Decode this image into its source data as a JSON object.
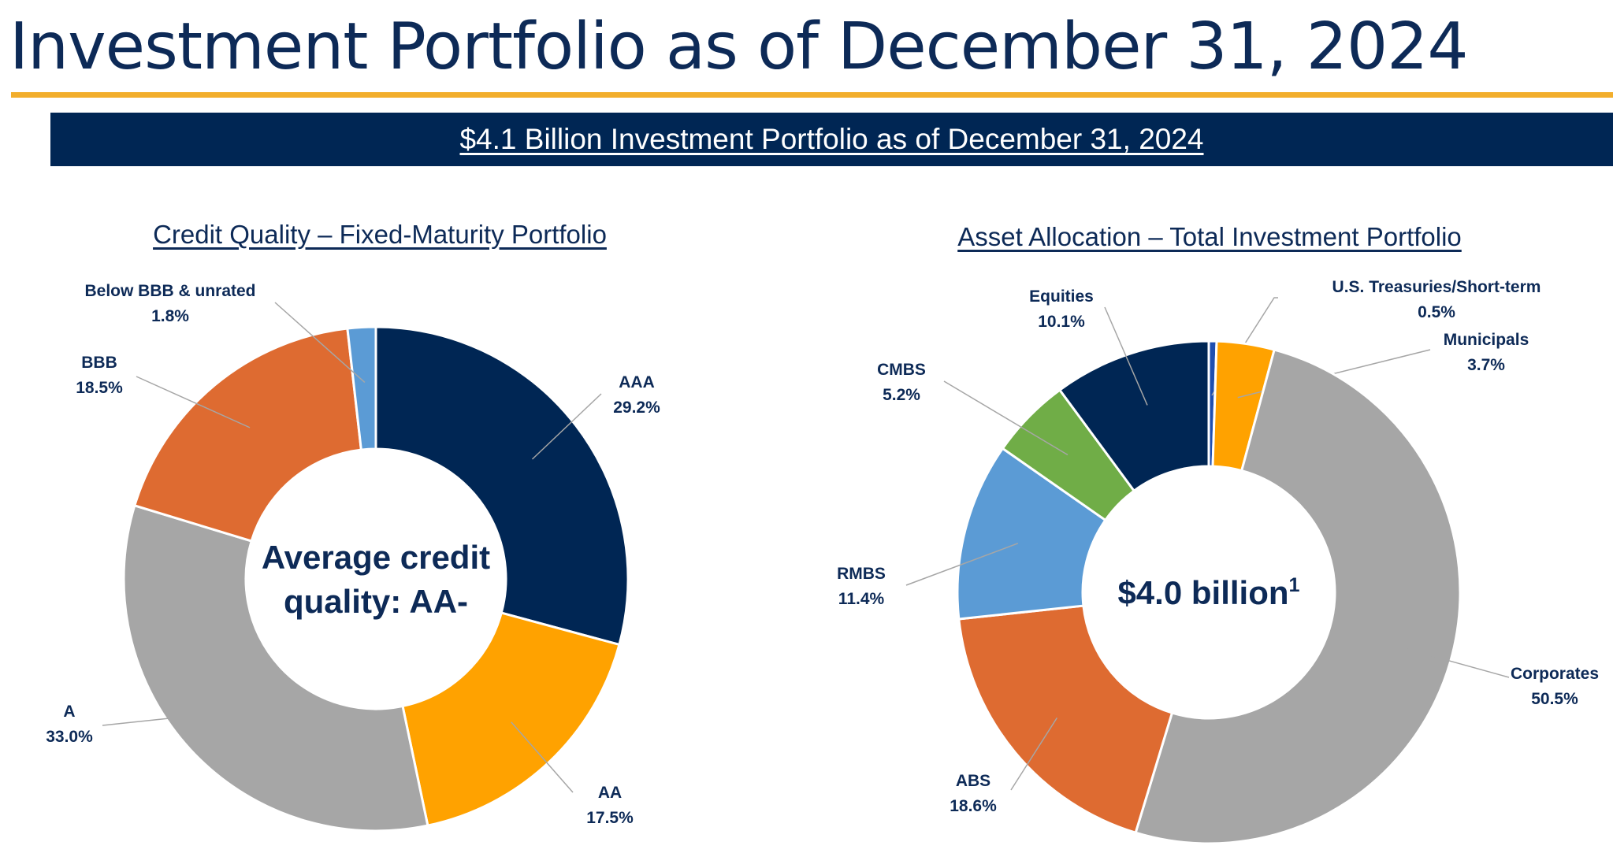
{
  "page": {
    "title": "Investment Portfolio as of December 31, 2024",
    "banner": "$4.1 Billion Investment Portfolio as of December 31, 2024"
  },
  "colors": {
    "navy": "#002654",
    "gold_rule": "#f2ae2c",
    "dark_navy": "#002654",
    "orange_gold": "#ffa200",
    "gray": "#a6a6a6",
    "orange": "#de6b31",
    "light_blue": "#5b9bd5",
    "green": "#70ad47",
    "blue": "#1f4fb0"
  },
  "chart_data": [
    {
      "type": "pie",
      "variant": "donut",
      "title": "Credit Quality – Fixed-Maturity Portfolio",
      "center_text": [
        "Average credit",
        "quality: AA-"
      ],
      "categories": [
        "AAA",
        "AA",
        "A",
        "BBB",
        "Below BBB & unrated"
      ],
      "values": [
        29.2,
        17.5,
        33.0,
        18.5,
        1.8
      ],
      "value_labels": [
        "29.2%",
        "17.5%",
        "33.0%",
        "18.5%",
        "1.8%"
      ],
      "colors": [
        "#002654",
        "#ffa200",
        "#a6a6a6",
        "#de6b31",
        "#5b9bd5"
      ],
      "start_angle_deg": 0,
      "direction": "clockwise"
    },
    {
      "type": "pie",
      "variant": "donut",
      "title": "Asset Allocation – Total Investment Portfolio",
      "center_text": [
        "$4.0 billion"
      ],
      "center_superscript": "1",
      "categories": [
        "U.S. Treasuries/Short-term",
        "Municipals",
        "Corporates",
        "ABS",
        "RMBS",
        "CMBS",
        "Equities"
      ],
      "values": [
        0.5,
        3.7,
        50.5,
        18.6,
        11.4,
        5.2,
        10.1
      ],
      "value_labels": [
        "0.5%",
        "3.7%",
        "50.5%",
        "18.6%",
        "11.4%",
        "5.2%",
        "10.1%"
      ],
      "colors": [
        "#1f4fb0",
        "#ffa200",
        "#a6a6a6",
        "#de6b31",
        "#5b9bd5",
        "#70ad47",
        "#002654"
      ],
      "start_angle_deg": 0,
      "direction": "clockwise"
    }
  ]
}
